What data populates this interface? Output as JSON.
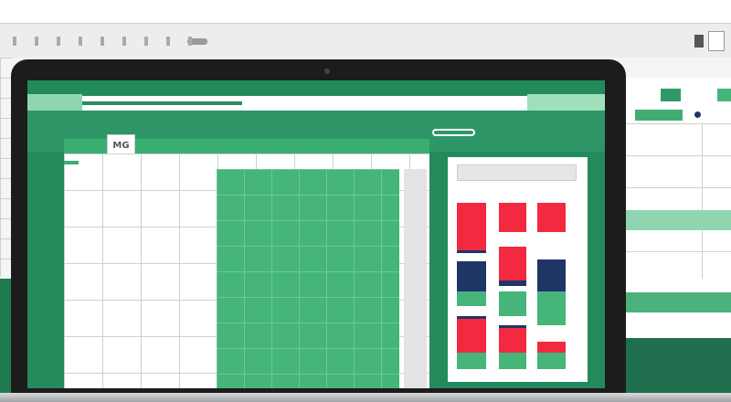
{
  "toolbar": {
    "icons": [
      "tool-icon",
      "tool-icon",
      "tool-icon",
      "tool-icon",
      "tool-icon",
      "tool-icon",
      "tool-icon",
      "tool-icon",
      "tool-icon"
    ]
  },
  "sheet": {
    "active_tab": "MG"
  },
  "colors": {
    "screen_green": "#238a5c",
    "cell_green": "#45b57a",
    "bar_red": "#f2293f",
    "bar_navy": "#1f3566",
    "bezel": "#1c1c1c"
  }
}
